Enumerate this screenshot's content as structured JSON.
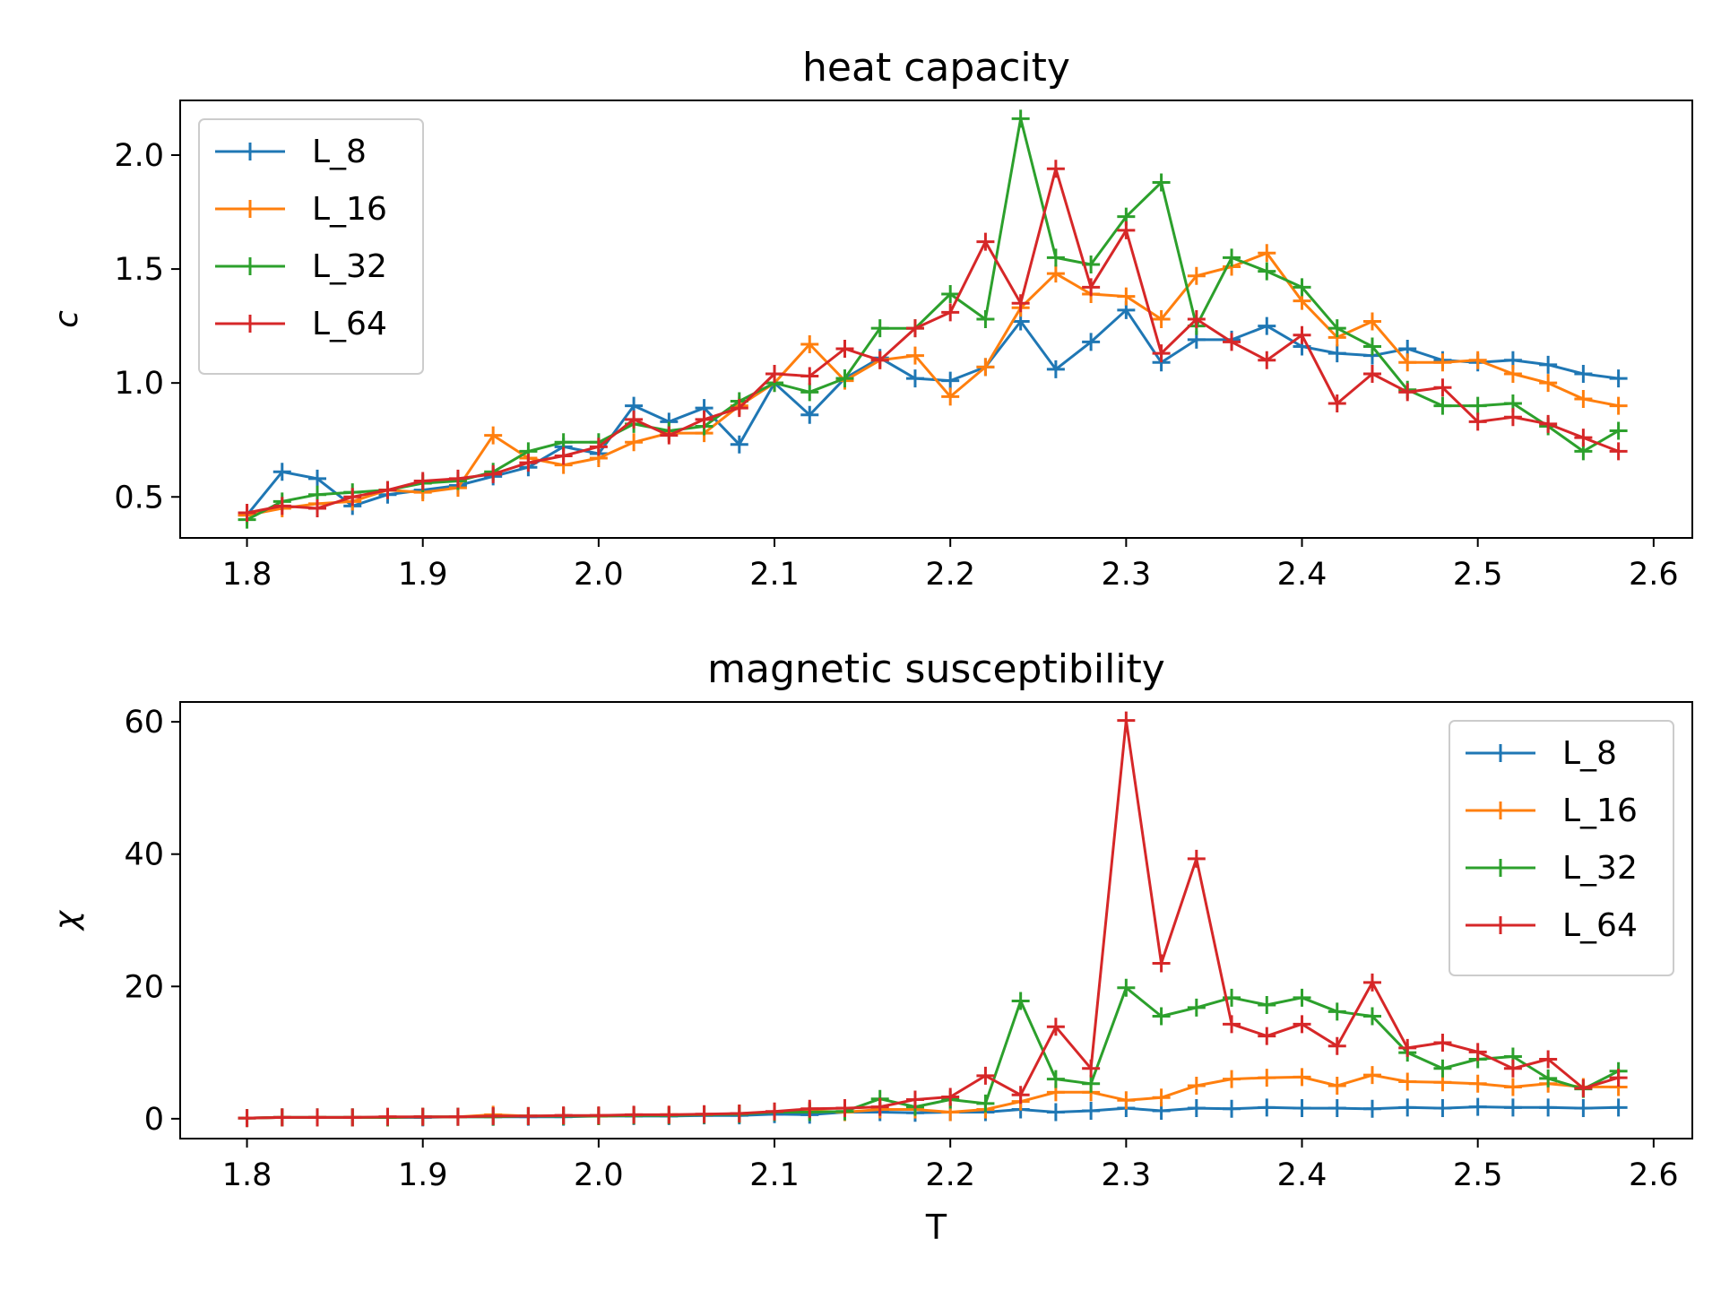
{
  "chart_data": [
    {
      "type": "line",
      "title": "heat capacity",
      "xlabel": "",
      "ylabel": "c",
      "xlim": [
        1.762,
        2.622
      ],
      "ylim": [
        0.32,
        2.24
      ],
      "xticks": [
        1.8,
        1.9,
        2.0,
        2.1,
        2.2,
        2.3,
        2.4,
        2.5,
        2.6
      ],
      "xtick_labels": [
        "1.8",
        "1.9",
        "2.0",
        "2.1",
        "2.2",
        "2.3",
        "2.4",
        "2.5",
        "2.6"
      ],
      "yticks": [
        0.5,
        1.0,
        1.5,
        2.0
      ],
      "ytick_labels": [
        "0.5",
        "1.0",
        "1.5",
        "2.0"
      ],
      "legend_position": "top-left",
      "marker": "+",
      "x": [
        1.8,
        1.82,
        1.84,
        1.86,
        1.88,
        1.9,
        1.92,
        1.94,
        1.96,
        1.98,
        2.0,
        2.02,
        2.04,
        2.06,
        2.08,
        2.1,
        2.12,
        2.14,
        2.16,
        2.18,
        2.2,
        2.22,
        2.24,
        2.26,
        2.28,
        2.3,
        2.32,
        2.34,
        2.36,
        2.38,
        2.4,
        2.42,
        2.44,
        2.46,
        2.48,
        2.5,
        2.52,
        2.54,
        2.56,
        2.58
      ],
      "series": [
        {
          "name": "L_8",
          "color": "#1f77b4",
          "values": [
            0.42,
            0.61,
            0.58,
            0.46,
            0.51,
            0.53,
            0.55,
            0.59,
            0.63,
            0.72,
            0.69,
            0.9,
            0.83,
            0.89,
            0.73,
            1.0,
            0.86,
            1.02,
            1.11,
            1.02,
            1.01,
            1.07,
            1.27,
            1.06,
            1.18,
            1.32,
            1.09,
            1.19,
            1.19,
            1.25,
            1.16,
            1.13,
            1.12,
            1.15,
            1.1,
            1.09,
            1.1,
            1.08,
            1.04,
            1.02
          ]
        },
        {
          "name": "L_16",
          "color": "#ff7f0e",
          "values": [
            0.42,
            0.45,
            0.47,
            0.48,
            0.53,
            0.52,
            0.54,
            0.77,
            0.67,
            0.64,
            0.67,
            0.74,
            0.78,
            0.78,
            0.9,
            1.0,
            1.17,
            1.01,
            1.1,
            1.12,
            0.94,
            1.07,
            1.33,
            1.48,
            1.39,
            1.38,
            1.28,
            1.47,
            1.51,
            1.57,
            1.36,
            1.2,
            1.27,
            1.09,
            1.09,
            1.1,
            1.04,
            1.0,
            0.93,
            0.9
          ]
        },
        {
          "name": "L_32",
          "color": "#2ca02c",
          "values": [
            0.4,
            0.48,
            0.51,
            0.52,
            0.53,
            0.56,
            0.57,
            0.61,
            0.7,
            0.74,
            0.74,
            0.82,
            0.79,
            0.81,
            0.92,
            1.0,
            0.96,
            1.02,
            1.24,
            1.24,
            1.39,
            1.28,
            2.16,
            1.55,
            1.52,
            1.73,
            1.88,
            1.25,
            1.55,
            1.49,
            1.42,
            1.24,
            1.16,
            0.97,
            0.9,
            0.9,
            0.91,
            0.81,
            0.7,
            0.79
          ]
        },
        {
          "name": "L_64",
          "color": "#d62728",
          "values": [
            0.43,
            0.46,
            0.45,
            0.5,
            0.53,
            0.57,
            0.58,
            0.6,
            0.65,
            0.68,
            0.72,
            0.84,
            0.77,
            0.84,
            0.89,
            1.04,
            1.03,
            1.15,
            1.1,
            1.24,
            1.31,
            1.62,
            1.35,
            1.94,
            1.42,
            1.67,
            1.13,
            1.28,
            1.18,
            1.1,
            1.21,
            0.91,
            1.04,
            0.96,
            0.98,
            0.83,
            0.85,
            0.82,
            0.76,
            0.7
          ]
        }
      ]
    },
    {
      "type": "line",
      "title": "magnetic susceptibility",
      "xlabel": "T",
      "ylabel": "χ",
      "xlim": [
        1.762,
        2.622
      ],
      "ylim": [
        -3,
        63
      ],
      "xticks": [
        1.8,
        1.9,
        2.0,
        2.1,
        2.2,
        2.3,
        2.4,
        2.5,
        2.6
      ],
      "xtick_labels": [
        "1.8",
        "1.9",
        "2.0",
        "2.1",
        "2.2",
        "2.3",
        "2.4",
        "2.5",
        "2.6"
      ],
      "yticks": [
        0,
        20,
        40,
        60
      ],
      "ytick_labels": [
        "0",
        "20",
        "40",
        "60"
      ],
      "legend_position": "top-right",
      "marker": "+",
      "x": [
        1.8,
        1.82,
        1.84,
        1.86,
        1.88,
        1.9,
        1.92,
        1.94,
        1.96,
        1.98,
        2.0,
        2.02,
        2.04,
        2.06,
        2.08,
        2.1,
        2.12,
        2.14,
        2.16,
        2.18,
        2.2,
        2.22,
        2.24,
        2.26,
        2.28,
        2.3,
        2.32,
        2.34,
        2.36,
        2.38,
        2.4,
        2.42,
        2.44,
        2.46,
        2.48,
        2.5,
        2.52,
        2.54,
        2.56,
        2.58
      ],
      "series": [
        {
          "name": "L_8",
          "color": "#1f77b4",
          "values": [
            0.1,
            0.2,
            0.2,
            0.2,
            0.2,
            0.2,
            0.3,
            0.3,
            0.3,
            0.3,
            0.4,
            0.4,
            0.4,
            0.5,
            0.5,
            0.7,
            0.6,
            1.0,
            1.0,
            0.9,
            1.0,
            1.0,
            1.4,
            1.0,
            1.2,
            1.6,
            1.2,
            1.6,
            1.5,
            1.7,
            1.6,
            1.6,
            1.5,
            1.7,
            1.6,
            1.8,
            1.7,
            1.7,
            1.6,
            1.7
          ]
        },
        {
          "name": "L_16",
          "color": "#ff7f0e",
          "values": [
            0.1,
            0.2,
            0.2,
            0.2,
            0.2,
            0.3,
            0.3,
            0.6,
            0.4,
            0.4,
            0.4,
            0.5,
            0.6,
            0.6,
            0.8,
            1.0,
            1.2,
            1.0,
            1.4,
            1.4,
            1.0,
            1.4,
            2.6,
            4.0,
            4.0,
            2.8,
            3.2,
            5.0,
            6.0,
            6.2,
            6.3,
            5.0,
            6.6,
            5.6,
            5.5,
            5.3,
            4.8,
            5.3,
            4.8,
            4.8
          ]
        },
        {
          "name": "L_32",
          "color": "#2ca02c",
          "values": [
            0.1,
            0.2,
            0.2,
            0.2,
            0.2,
            0.3,
            0.3,
            0.3,
            0.4,
            0.4,
            0.4,
            0.5,
            0.5,
            0.6,
            0.7,
            1.0,
            1.0,
            1.1,
            3.0,
            1.8,
            2.9,
            2.3,
            17.8,
            6.0,
            5.3,
            19.8,
            15.5,
            16.8,
            18.3,
            17.2,
            18.3,
            16.2,
            15.5,
            10.0,
            7.6,
            9.0,
            9.4,
            6.1,
            4.5,
            7.2
          ]
        },
        {
          "name": "L_64",
          "color": "#d62728",
          "values": [
            0.1,
            0.2,
            0.2,
            0.2,
            0.3,
            0.3,
            0.3,
            0.4,
            0.4,
            0.5,
            0.5,
            0.6,
            0.6,
            0.7,
            0.8,
            1.1,
            1.5,
            1.6,
            1.8,
            2.9,
            3.3,
            6.5,
            3.6,
            13.9,
            7.6,
            60.2,
            23.5,
            39.3,
            14.3,
            12.5,
            14.3,
            11.0,
            20.6,
            10.7,
            11.5,
            10.1,
            7.6,
            9.0,
            4.6,
            6.2
          ]
        }
      ]
    }
  ]
}
